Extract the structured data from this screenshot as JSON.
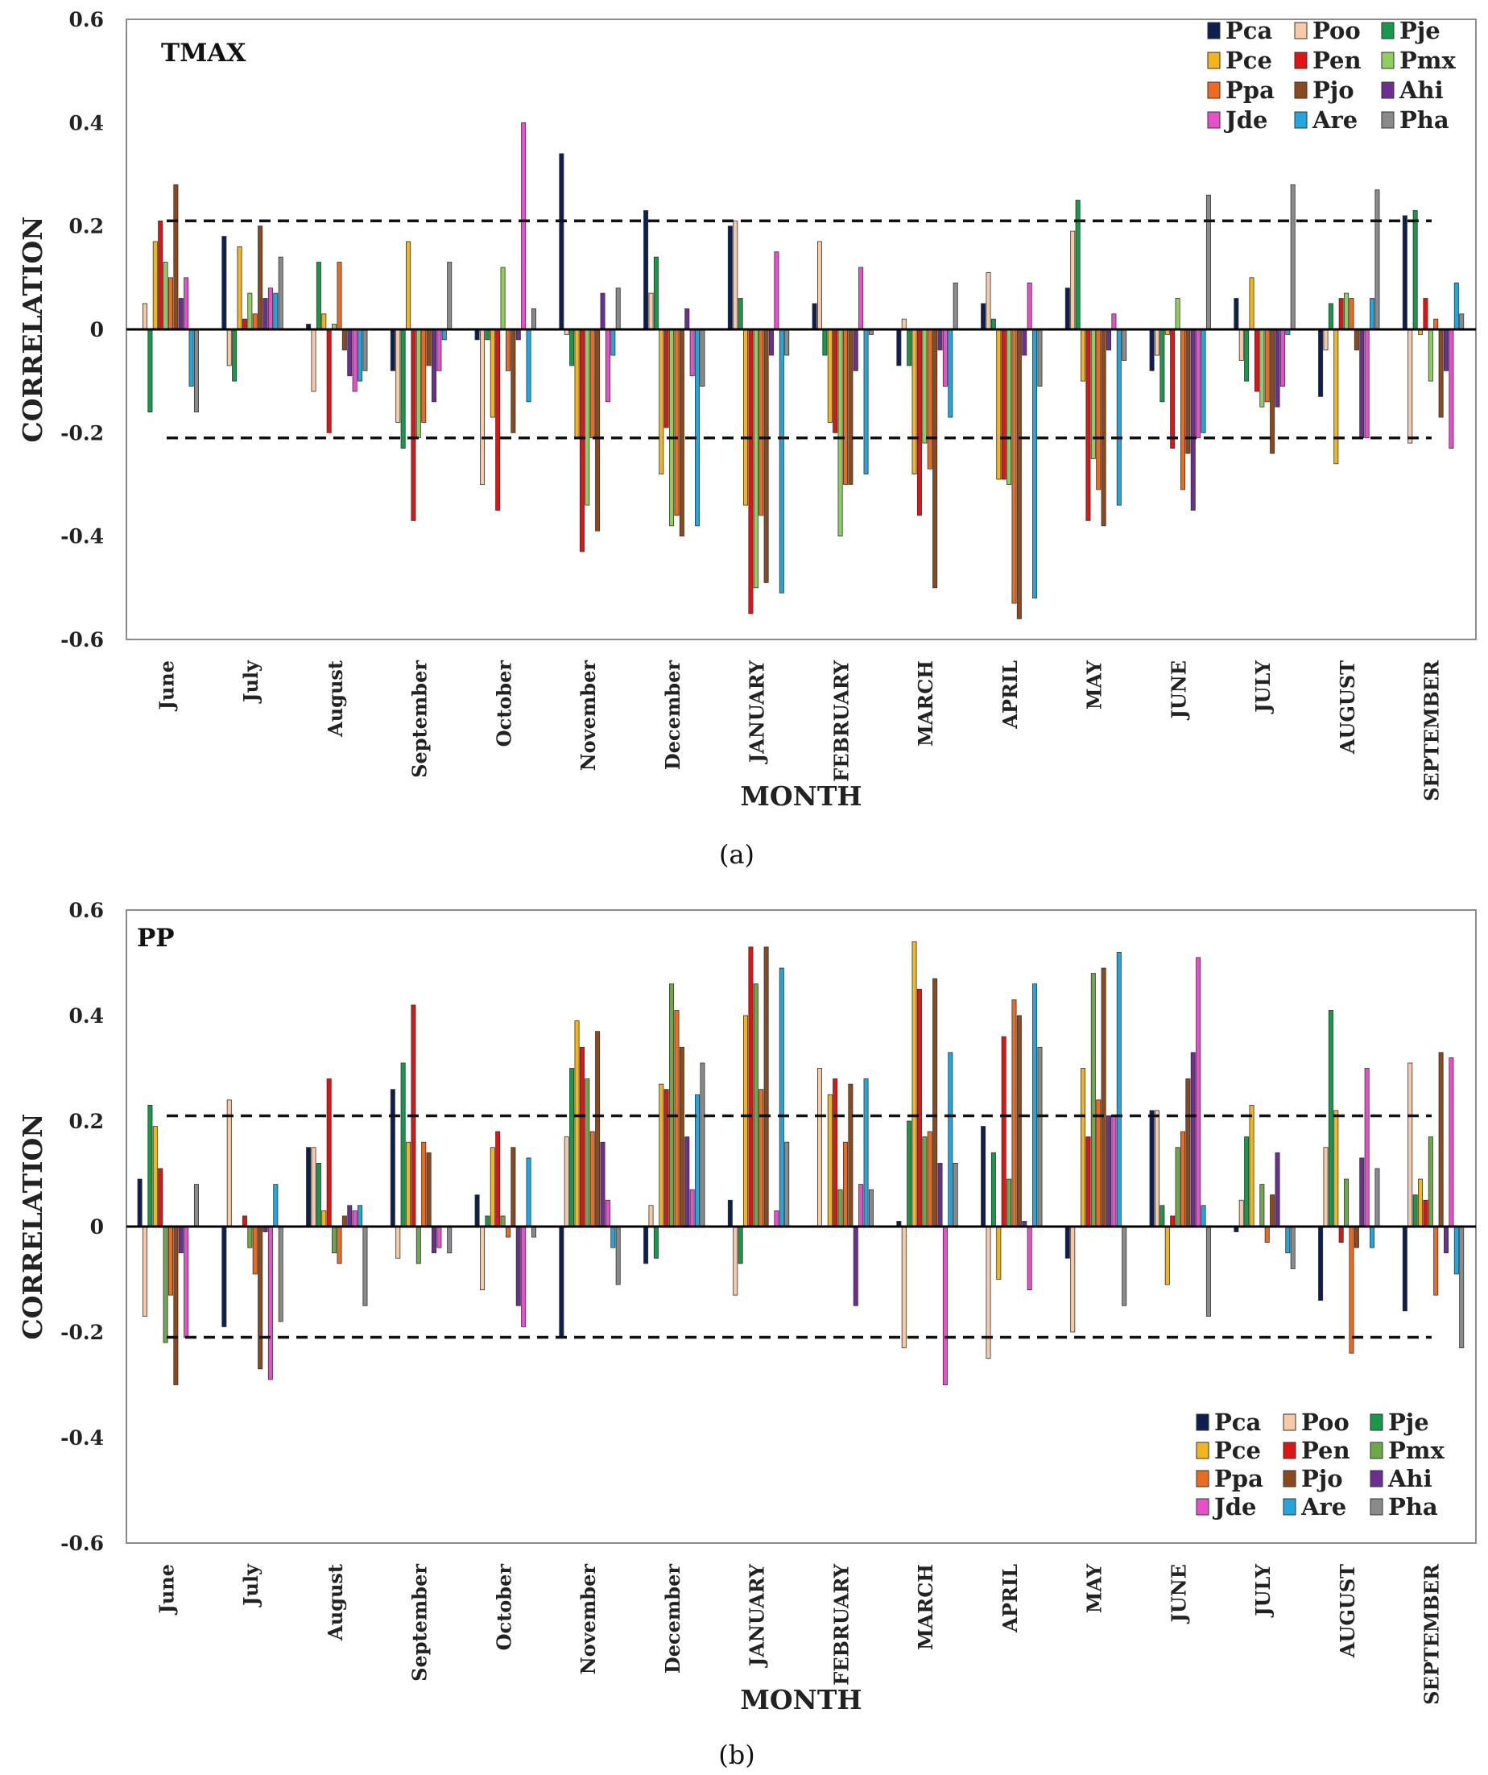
{
  "chart_data": [
    {
      "type": "bar",
      "title": "TMAX",
      "xlabel": "MONTH",
      "ylabel": "CORRELATION",
      "caption": "(a)",
      "ylim": [
        -0.6,
        0.6
      ],
      "yticks": [
        "0.6",
        "0.4",
        "0.2",
        "0",
        "-0.2",
        "-0.4",
        "-0.6"
      ],
      "threshold_lines": [
        0.21,
        -0.21
      ],
      "legend_position": "top-right",
      "categories": [
        "June",
        "July",
        "August",
        "September",
        "October",
        "November",
        "December",
        "JANUARY",
        "FEBRUARY",
        "MARCH",
        "APRIL",
        "MAY",
        "JUNE",
        "JULY",
        "AUGUST",
        "SEPTEMBER"
      ],
      "series": [
        {
          "name": "Pca",
          "color": "#0d1f4f",
          "values": [
            0.0,
            0.18,
            0.01,
            -0.08,
            -0.02,
            0.34,
            0.23,
            0.2,
            0.05,
            -0.07,
            0.05,
            0.08,
            -0.08,
            0.06,
            -0.13,
            0.22
          ]
        },
        {
          "name": "Poo",
          "color": "#f7c9a6",
          "values": [
            0.05,
            -0.07,
            -0.12,
            -0.18,
            -0.3,
            -0.01,
            0.07,
            0.21,
            0.17,
            0.02,
            0.11,
            0.19,
            -0.05,
            -0.06,
            -0.04,
            -0.22
          ]
        },
        {
          "name": "Pje",
          "color": "#17994a",
          "values": [
            -0.16,
            -0.1,
            0.13,
            -0.23,
            -0.02,
            -0.07,
            0.14,
            0.06,
            -0.05,
            -0.07,
            0.02,
            0.25,
            -0.14,
            -0.1,
            0.05,
            0.23
          ]
        },
        {
          "name": "Pce",
          "color": "#f2b51d",
          "values": [
            0.17,
            0.16,
            0.03,
            0.17,
            -0.17,
            -0.21,
            -0.28,
            -0.34,
            -0.18,
            -0.28,
            -0.29,
            -0.1,
            -0.01,
            0.1,
            -0.26,
            -0.01
          ]
        },
        {
          "name": "Pen",
          "color": "#e01414",
          "values": [
            0.21,
            0.02,
            -0.2,
            -0.37,
            -0.35,
            -0.43,
            -0.19,
            -0.55,
            -0.2,
            -0.36,
            -0.29,
            -0.37,
            -0.23,
            -0.12,
            0.06,
            0.06
          ]
        },
        {
          "name": "Pmx",
          "color": "#8fcf60",
          "values": [
            0.13,
            0.07,
            0.01,
            -0.21,
            0.12,
            -0.34,
            -0.38,
            -0.5,
            -0.4,
            -0.22,
            -0.3,
            -0.25,
            0.06,
            -0.15,
            0.07,
            -0.1
          ]
        },
        {
          "name": "Ppa",
          "color": "#ec6b1f",
          "values": [
            0.1,
            0.03,
            0.13,
            -0.18,
            -0.08,
            -0.21,
            -0.36,
            -0.36,
            -0.3,
            -0.27,
            -0.53,
            -0.31,
            -0.31,
            -0.14,
            0.06,
            0.02
          ]
        },
        {
          "name": "Pjo",
          "color": "#8a4a1e",
          "values": [
            0.28,
            0.2,
            -0.04,
            -0.07,
            -0.2,
            -0.39,
            -0.4,
            -0.49,
            -0.3,
            -0.5,
            -0.56,
            -0.38,
            -0.24,
            -0.24,
            -0.04,
            -0.17
          ]
        },
        {
          "name": "Ahi",
          "color": "#6b2e91",
          "values": [
            0.06,
            0.06,
            -0.09,
            -0.14,
            -0.02,
            0.07,
            0.04,
            -0.05,
            -0.08,
            -0.04,
            -0.05,
            -0.04,
            -0.35,
            -0.15,
            -0.21,
            -0.08
          ]
        },
        {
          "name": "Jde",
          "color": "#e94fcb",
          "values": [
            0.1,
            0.08,
            -0.12,
            -0.08,
            0.4,
            -0.14,
            -0.09,
            0.15,
            0.12,
            -0.11,
            0.09,
            0.03,
            -0.21,
            -0.11,
            -0.21,
            -0.23
          ]
        },
        {
          "name": "Are",
          "color": "#23a6dd",
          "values": [
            -0.11,
            0.07,
            -0.1,
            -0.02,
            -0.14,
            -0.05,
            -0.38,
            -0.51,
            -0.28,
            -0.17,
            -0.52,
            -0.34,
            -0.2,
            -0.01,
            0.06,
            0.09
          ]
        },
        {
          "name": "Pha",
          "color": "#8a8a8a",
          "values": [
            -0.16,
            0.14,
            -0.08,
            0.13,
            0.04,
            0.08,
            -0.11,
            -0.05,
            -0.01,
            0.09,
            -0.11,
            -0.06,
            0.26,
            0.28,
            0.27,
            0.03
          ]
        }
      ]
    },
    {
      "type": "bar",
      "title": "PP",
      "xlabel": "MONTH",
      "ylabel": "CORRELATION",
      "caption": "(b)",
      "ylim": [
        -0.6,
        0.6
      ],
      "yticks": [
        "0.6",
        "0.4",
        "0.2",
        "0",
        "-0.2",
        "-0.4",
        "-0.6"
      ],
      "threshold_lines": [
        0.21,
        -0.21
      ],
      "legend_position": "bottom-right",
      "categories": [
        "June",
        "July",
        "August",
        "September",
        "October",
        "November",
        "December",
        "JANUARY",
        "FEBRUARY",
        "MARCH",
        "APRIL",
        "MAY",
        "JUNE",
        "JULY",
        "AUGUST",
        "SEPTEMBER"
      ],
      "series": [
        {
          "name": "Pca",
          "color": "#0d1f4f",
          "values": [
            0.09,
            -0.19,
            0.15,
            0.26,
            0.06,
            -0.21,
            -0.07,
            0.05,
            0.0,
            0.01,
            0.19,
            -0.06,
            0.22,
            -0.01,
            -0.14,
            -0.16
          ]
        },
        {
          "name": "Poo",
          "color": "#f7c9a6",
          "values": [
            -0.17,
            0.24,
            0.15,
            -0.06,
            -0.12,
            0.17,
            0.04,
            -0.13,
            0.3,
            -0.23,
            -0.25,
            -0.2,
            0.22,
            0.05,
            0.15,
            0.31
          ]
        },
        {
          "name": "Pje",
          "color": "#17994a",
          "values": [
            0.23,
            0.0,
            0.12,
            0.31,
            0.02,
            0.3,
            -0.06,
            -0.07,
            0.0,
            0.2,
            0.14,
            0.0,
            0.04,
            0.17,
            0.41,
            0.06
          ]
        },
        {
          "name": "Pce",
          "color": "#f2b51d",
          "values": [
            0.19,
            0.0,
            0.03,
            0.16,
            0.15,
            0.39,
            0.27,
            0.4,
            0.25,
            0.54,
            -0.1,
            0.3,
            -0.11,
            0.23,
            0.22,
            0.09
          ]
        },
        {
          "name": "Pen",
          "color": "#e01414",
          "values": [
            0.11,
            0.02,
            0.28,
            0.42,
            0.18,
            0.34,
            0.26,
            0.53,
            0.28,
            0.45,
            0.36,
            0.17,
            0.02,
            0.0,
            -0.03,
            0.05
          ]
        },
        {
          "name": "Pmx",
          "color": "#6ea84a",
          "values": [
            -0.22,
            -0.04,
            -0.05,
            -0.07,
            0.02,
            0.28,
            0.46,
            0.46,
            0.07,
            0.17,
            0.09,
            0.48,
            0.15,
            0.08,
            0.09,
            0.17
          ]
        },
        {
          "name": "Ppa",
          "color": "#ec6b1f",
          "values": [
            -0.13,
            -0.09,
            -0.07,
            0.16,
            -0.02,
            0.18,
            0.41,
            0.26,
            0.16,
            0.18,
            0.43,
            0.24,
            0.18,
            -0.03,
            -0.24,
            -0.13
          ]
        },
        {
          "name": "Pjo",
          "color": "#8a4a1e",
          "values": [
            -0.3,
            -0.27,
            0.02,
            0.14,
            0.15,
            0.37,
            0.34,
            0.53,
            0.27,
            0.47,
            0.4,
            0.49,
            0.28,
            0.06,
            -0.04,
            0.33
          ]
        },
        {
          "name": "Ahi",
          "color": "#6b2e91",
          "values": [
            -0.05,
            -0.01,
            0.04,
            -0.05,
            -0.15,
            0.16,
            0.17,
            0.0,
            -0.15,
            0.12,
            0.01,
            0.21,
            0.33,
            0.14,
            0.13,
            -0.05
          ]
        },
        {
          "name": "Jde",
          "color": "#e94fcb",
          "values": [
            -0.21,
            -0.29,
            0.03,
            -0.04,
            -0.19,
            0.05,
            0.07,
            0.03,
            0.08,
            -0.3,
            -0.12,
            0.21,
            0.51,
            0.0,
            0.3,
            0.32
          ]
        },
        {
          "name": "Are",
          "color": "#23a6dd",
          "values": [
            0.0,
            0.08,
            0.04,
            0.0,
            0.13,
            -0.04,
            0.25,
            0.49,
            0.28,
            0.33,
            0.46,
            0.52,
            0.04,
            -0.05,
            -0.04,
            -0.09
          ]
        },
        {
          "name": "Pha",
          "color": "#8a8a8a",
          "values": [
            0.08,
            -0.18,
            -0.15,
            -0.05,
            -0.02,
            -0.11,
            0.31,
            0.16,
            0.07,
            0.12,
            0.34,
            -0.15,
            -0.17,
            -0.08,
            0.11,
            -0.23
          ]
        }
      ]
    }
  ]
}
